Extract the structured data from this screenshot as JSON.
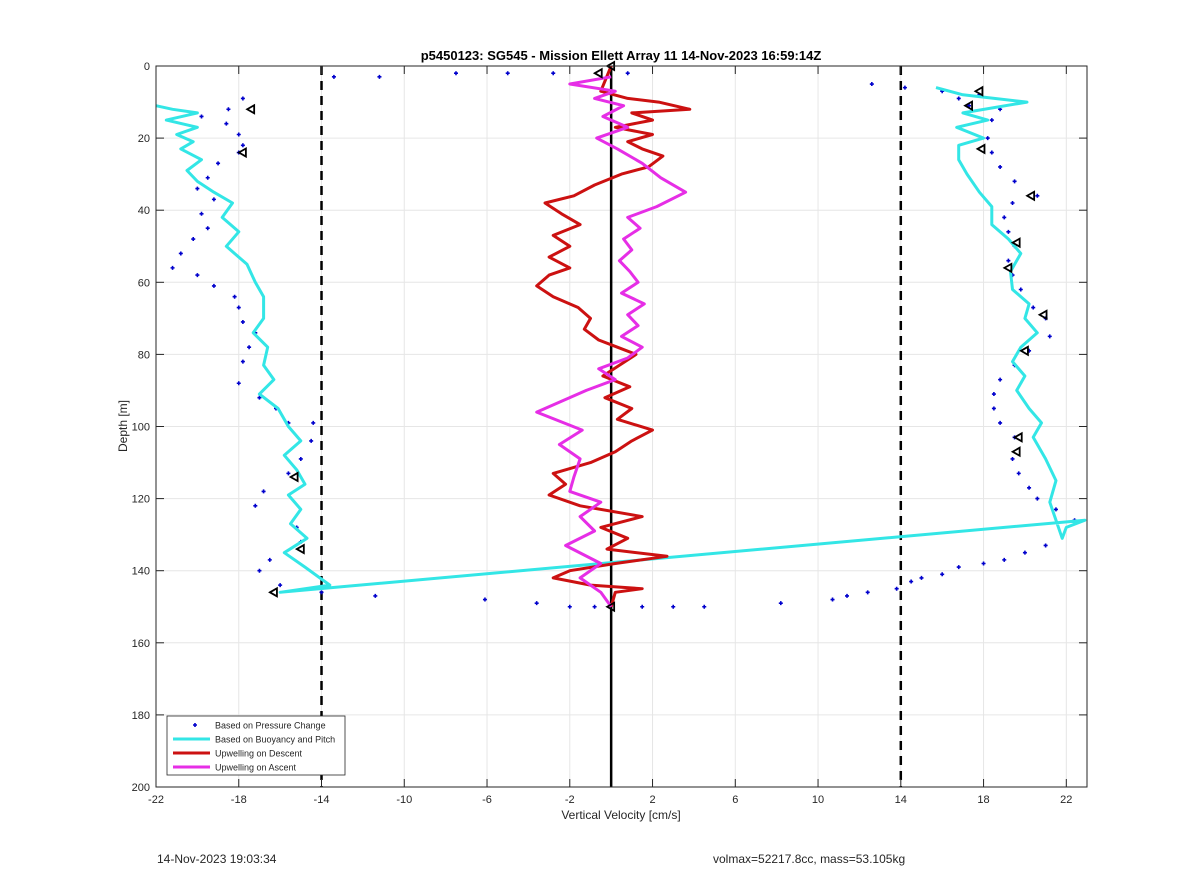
{
  "footer": {
    "timestamp": "14-Nov-2023 19:03:34",
    "volmax_mass": "volmax=52217.8cc, mass=53.105kg"
  },
  "chart_data": {
    "type": "line",
    "title": "p5450123: SG545 - Mission Ellett Array 11 14-Nov-2023 16:59:14Z",
    "xlabel": "Vertical Velocity [cm/s]",
    "ylabel": "Depth [m]",
    "xlim": [
      -22,
      23
    ],
    "ylim": [
      0,
      200
    ],
    "y_reversed": true,
    "grid": true,
    "x_ticks": [
      -22,
      -18,
      -14,
      -10,
      -6,
      -2,
      2,
      6,
      10,
      14,
      18,
      22
    ],
    "y_ticks": [
      0,
      20,
      40,
      60,
      80,
      100,
      120,
      140,
      160,
      180,
      200
    ],
    "reference_lines": [
      {
        "x": -14,
        "style": "dashed",
        "color": "#000000"
      },
      {
        "x": 14,
        "style": "dashed",
        "color": "#000000"
      },
      {
        "x": 0,
        "style": "solid",
        "color": "#000000"
      }
    ],
    "legend_position": "bottom-left",
    "series": [
      {
        "name": "Based on Pressure Change",
        "style": "markers",
        "color": "#0000cc",
        "points": [
          [
            -13.4,
            3
          ],
          [
            -11.2,
            3
          ],
          [
            -7.5,
            2
          ],
          [
            -5.0,
            2
          ],
          [
            -2.8,
            2
          ],
          [
            0.8,
            2
          ],
          [
            12.6,
            5
          ],
          [
            14.2,
            6
          ],
          [
            16.0,
            7
          ],
          [
            16.8,
            9
          ],
          [
            17.3,
            11
          ],
          [
            -17.8,
            9
          ],
          [
            -18.5,
            12
          ],
          [
            -19.8,
            14
          ],
          [
            -18.6,
            16
          ],
          [
            -18.0,
            19
          ],
          [
            -17.8,
            22
          ],
          [
            -18.0,
            24
          ],
          [
            -19.0,
            27
          ],
          [
            -19.5,
            31
          ],
          [
            -20.0,
            34
          ],
          [
            -19.2,
            37
          ],
          [
            -19.8,
            41
          ],
          [
            -19.5,
            45
          ],
          [
            -20.2,
            48
          ],
          [
            -20.8,
            52
          ],
          [
            -21.2,
            56
          ],
          [
            -20.0,
            58
          ],
          [
            -19.2,
            61
          ],
          [
            -18.2,
            64
          ],
          [
            -18.0,
            67
          ],
          [
            -17.8,
            71
          ],
          [
            -17.2,
            74
          ],
          [
            -17.5,
            78
          ],
          [
            -17.8,
            82
          ],
          [
            -18.0,
            88
          ],
          [
            -17.0,
            92
          ],
          [
            -16.2,
            95
          ],
          [
            -15.6,
            99
          ],
          [
            -14.4,
            99
          ],
          [
            -14.5,
            104
          ],
          [
            -15.0,
            109
          ],
          [
            -15.6,
            113
          ],
          [
            -16.8,
            118
          ],
          [
            -17.2,
            122
          ],
          [
            -15.2,
            128
          ],
          [
            -15.0,
            132
          ],
          [
            -16.5,
            137
          ],
          [
            -17.0,
            140
          ],
          [
            -16.0,
            144
          ],
          [
            -14.0,
            146
          ],
          [
            -11.4,
            147
          ],
          [
            -6.1,
            148
          ],
          [
            -3.6,
            149
          ],
          [
            -2.0,
            150
          ],
          [
            -0.8,
            150
          ],
          [
            1.5,
            150
          ],
          [
            3.0,
            150
          ],
          [
            4.5,
            150
          ],
          [
            8.2,
            149
          ],
          [
            10.7,
            148
          ],
          [
            11.4,
            147
          ],
          [
            12.4,
            146
          ],
          [
            13.8,
            145
          ],
          [
            14.5,
            143
          ],
          [
            15.0,
            142
          ],
          [
            16.0,
            141
          ],
          [
            16.8,
            139
          ],
          [
            18.0,
            138
          ],
          [
            19.0,
            137
          ],
          [
            20.0,
            135
          ],
          [
            21.0,
            133
          ],
          [
            22.4,
            126
          ],
          [
            21.5,
            123
          ],
          [
            20.6,
            120
          ],
          [
            20.2,
            117
          ],
          [
            19.7,
            113
          ],
          [
            19.4,
            109
          ],
          [
            19.5,
            103
          ],
          [
            18.8,
            99
          ],
          [
            18.5,
            95
          ],
          [
            18.5,
            91
          ],
          [
            18.8,
            87
          ],
          [
            19.5,
            83
          ],
          [
            20.2,
            79
          ],
          [
            21.2,
            75
          ],
          [
            21.0,
            70
          ],
          [
            20.4,
            67
          ],
          [
            19.8,
            62
          ],
          [
            19.4,
            58
          ],
          [
            19.2,
            54
          ],
          [
            19.5,
            50
          ],
          [
            19.2,
            46
          ],
          [
            19.0,
            42
          ],
          [
            19.4,
            38
          ],
          [
            20.6,
            36
          ],
          [
            19.5,
            32
          ],
          [
            18.8,
            28
          ],
          [
            18.4,
            24
          ],
          [
            18.2,
            20
          ],
          [
            18.4,
            15
          ],
          [
            18.8,
            12
          ],
          [
            17.8,
            8
          ]
        ]
      },
      {
        "name": "Based on Buoyancy and Pitch",
        "style": "line",
        "color": "#33e6e6",
        "points": [
          [
            -22.0,
            11
          ],
          [
            -21.2,
            12
          ],
          [
            -20.0,
            13
          ],
          [
            -21.5,
            15
          ],
          [
            -20.0,
            17
          ],
          [
            -21.0,
            19
          ],
          [
            -20.2,
            21
          ],
          [
            -20.8,
            23
          ],
          [
            -19.8,
            26
          ],
          [
            -20.5,
            29
          ],
          [
            -20.0,
            32
          ],
          [
            -19.2,
            35
          ],
          [
            -18.3,
            38
          ],
          [
            -18.8,
            42
          ],
          [
            -18.0,
            46
          ],
          [
            -18.6,
            50
          ],
          [
            -17.6,
            55
          ],
          [
            -17.2,
            60
          ],
          [
            -16.8,
            64
          ],
          [
            -16.8,
            70
          ],
          [
            -17.3,
            74
          ],
          [
            -16.6,
            78
          ],
          [
            -16.8,
            83
          ],
          [
            -16.3,
            87
          ],
          [
            -17.0,
            91
          ],
          [
            -16.1,
            95
          ],
          [
            -15.6,
            100
          ],
          [
            -15.0,
            104
          ],
          [
            -15.8,
            108
          ],
          [
            -15.2,
            112
          ],
          [
            -14.8,
            116
          ],
          [
            -15.6,
            119
          ],
          [
            -15.0,
            123
          ],
          [
            -15.5,
            127
          ],
          [
            -14.7,
            131
          ],
          [
            -15.8,
            135
          ],
          [
            -14.8,
            139
          ],
          [
            -13.6,
            144
          ],
          [
            -16.0,
            146
          ],
          [
            22.9,
            126
          ],
          [
            22.0,
            128
          ],
          [
            21.8,
            131
          ],
          [
            21.2,
            121
          ],
          [
            21.5,
            115
          ],
          [
            21.0,
            109
          ],
          [
            20.4,
            103
          ],
          [
            20.8,
            99
          ],
          [
            20.2,
            95
          ],
          [
            19.6,
            90
          ],
          [
            20.0,
            86
          ],
          [
            19.4,
            82
          ],
          [
            19.8,
            78
          ],
          [
            20.6,
            74
          ],
          [
            20.0,
            70
          ],
          [
            20.2,
            66
          ],
          [
            19.4,
            62
          ],
          [
            19.3,
            57
          ],
          [
            19.8,
            52
          ],
          [
            19.2,
            48
          ],
          [
            18.4,
            44
          ],
          [
            18.4,
            39
          ],
          [
            17.8,
            35
          ],
          [
            17.2,
            30
          ],
          [
            16.8,
            26
          ],
          [
            16.8,
            22
          ],
          [
            18.0,
            20
          ],
          [
            16.7,
            17
          ],
          [
            18.2,
            15
          ],
          [
            17.0,
            13
          ],
          [
            20.1,
            10
          ],
          [
            17.0,
            8
          ],
          [
            15.7,
            6
          ]
        ]
      },
      {
        "name": "Upwelling on Descent",
        "style": "line",
        "color": "#cc1111",
        "points": [
          [
            0.0,
            0
          ],
          [
            -0.5,
            7
          ],
          [
            0.8,
            9
          ],
          [
            2.3,
            10
          ],
          [
            3.8,
            12
          ],
          [
            1.0,
            13
          ],
          [
            2.0,
            15
          ],
          [
            0.2,
            17
          ],
          [
            2.0,
            19
          ],
          [
            0.8,
            21
          ],
          [
            1.5,
            23
          ],
          [
            2.5,
            25
          ],
          [
            1.8,
            28
          ],
          [
            0.5,
            30
          ],
          [
            -0.8,
            33
          ],
          [
            -1.8,
            36
          ],
          [
            -3.2,
            38
          ],
          [
            -2.4,
            41
          ],
          [
            -1.5,
            44
          ],
          [
            -2.8,
            47
          ],
          [
            -2.0,
            50
          ],
          [
            -3.0,
            53
          ],
          [
            -2.0,
            56
          ],
          [
            -3.0,
            58
          ],
          [
            -3.6,
            61
          ],
          [
            -2.8,
            64
          ],
          [
            -1.6,
            67
          ],
          [
            -1.0,
            70
          ],
          [
            -1.3,
            73
          ],
          [
            -0.6,
            76
          ],
          [
            0.3,
            78
          ],
          [
            1.2,
            80
          ],
          [
            0.4,
            83
          ],
          [
            -0.4,
            86
          ],
          [
            0.9,
            89
          ],
          [
            -0.3,
            92
          ],
          [
            1.0,
            95
          ],
          [
            0.3,
            98
          ],
          [
            2.0,
            101
          ],
          [
            1.0,
            104
          ],
          [
            0.2,
            107
          ],
          [
            -1.0,
            110
          ],
          [
            -2.8,
            113
          ],
          [
            -2.2,
            116
          ],
          [
            -3.0,
            119
          ],
          [
            -1.5,
            122
          ],
          [
            1.5,
            125
          ],
          [
            -0.5,
            128
          ],
          [
            0.8,
            131
          ],
          [
            -0.2,
            134
          ],
          [
            2.7,
            136
          ],
          [
            0.2,
            138
          ],
          [
            -2.0,
            140
          ],
          [
            -2.8,
            142
          ],
          [
            -1.0,
            144
          ],
          [
            1.5,
            145
          ],
          [
            0.2,
            146
          ],
          [
            0.0,
            150
          ]
        ]
      },
      {
        "name": "Upwelling on Ascent",
        "style": "line",
        "color": "#e62ee6",
        "points": [
          [
            0.0,
            150
          ],
          [
            -0.5,
            146
          ],
          [
            -1.5,
            142
          ],
          [
            -0.5,
            138
          ],
          [
            -2.2,
            133
          ],
          [
            -0.8,
            129
          ],
          [
            -1.5,
            125
          ],
          [
            -0.5,
            121
          ],
          [
            -2.0,
            118
          ],
          [
            -1.8,
            114
          ],
          [
            -1.5,
            109
          ],
          [
            -2.5,
            105
          ],
          [
            -1.4,
            101
          ],
          [
            -3.6,
            96
          ],
          [
            -2.4,
            93
          ],
          [
            -1.2,
            90
          ],
          [
            0.2,
            87
          ],
          [
            -0.6,
            84
          ],
          [
            0.8,
            81
          ],
          [
            1.5,
            78
          ],
          [
            0.5,
            75
          ],
          [
            1.3,
            72
          ],
          [
            0.8,
            69
          ],
          [
            1.6,
            66
          ],
          [
            0.5,
            63
          ],
          [
            1.3,
            60
          ],
          [
            0.9,
            57
          ],
          [
            0.4,
            54
          ],
          [
            1.0,
            51
          ],
          [
            0.6,
            48
          ],
          [
            1.4,
            45
          ],
          [
            0.8,
            42
          ],
          [
            2.2,
            39
          ],
          [
            3.6,
            35
          ],
          [
            2.4,
            31
          ],
          [
            1.5,
            27
          ],
          [
            0.3,
            23
          ],
          [
            -0.7,
            20
          ],
          [
            0.8,
            17
          ],
          [
            -0.4,
            14
          ],
          [
            0.6,
            11
          ],
          [
            -0.8,
            9
          ],
          [
            0.2,
            7
          ],
          [
            -2.0,
            5
          ],
          [
            0.0,
            3
          ]
        ]
      },
      {
        "name": "",
        "style": "open-triangles",
        "color": "#000000",
        "points": [
          [
            -0.6,
            2
          ],
          [
            0.0,
            0
          ],
          [
            -17.4,
            12
          ],
          [
            -17.8,
            24
          ],
          [
            -15.3,
            114
          ],
          [
            -15.0,
            134
          ],
          [
            -16.3,
            146
          ],
          [
            17.8,
            7
          ],
          [
            17.3,
            11
          ],
          [
            17.9,
            23
          ],
          [
            20.3,
            36
          ],
          [
            19.6,
            49
          ],
          [
            19.2,
            56
          ],
          [
            20.9,
            69
          ],
          [
            20.0,
            79
          ],
          [
            19.7,
            103
          ],
          [
            19.6,
            107
          ],
          [
            0.0,
            150
          ]
        ]
      }
    ]
  }
}
